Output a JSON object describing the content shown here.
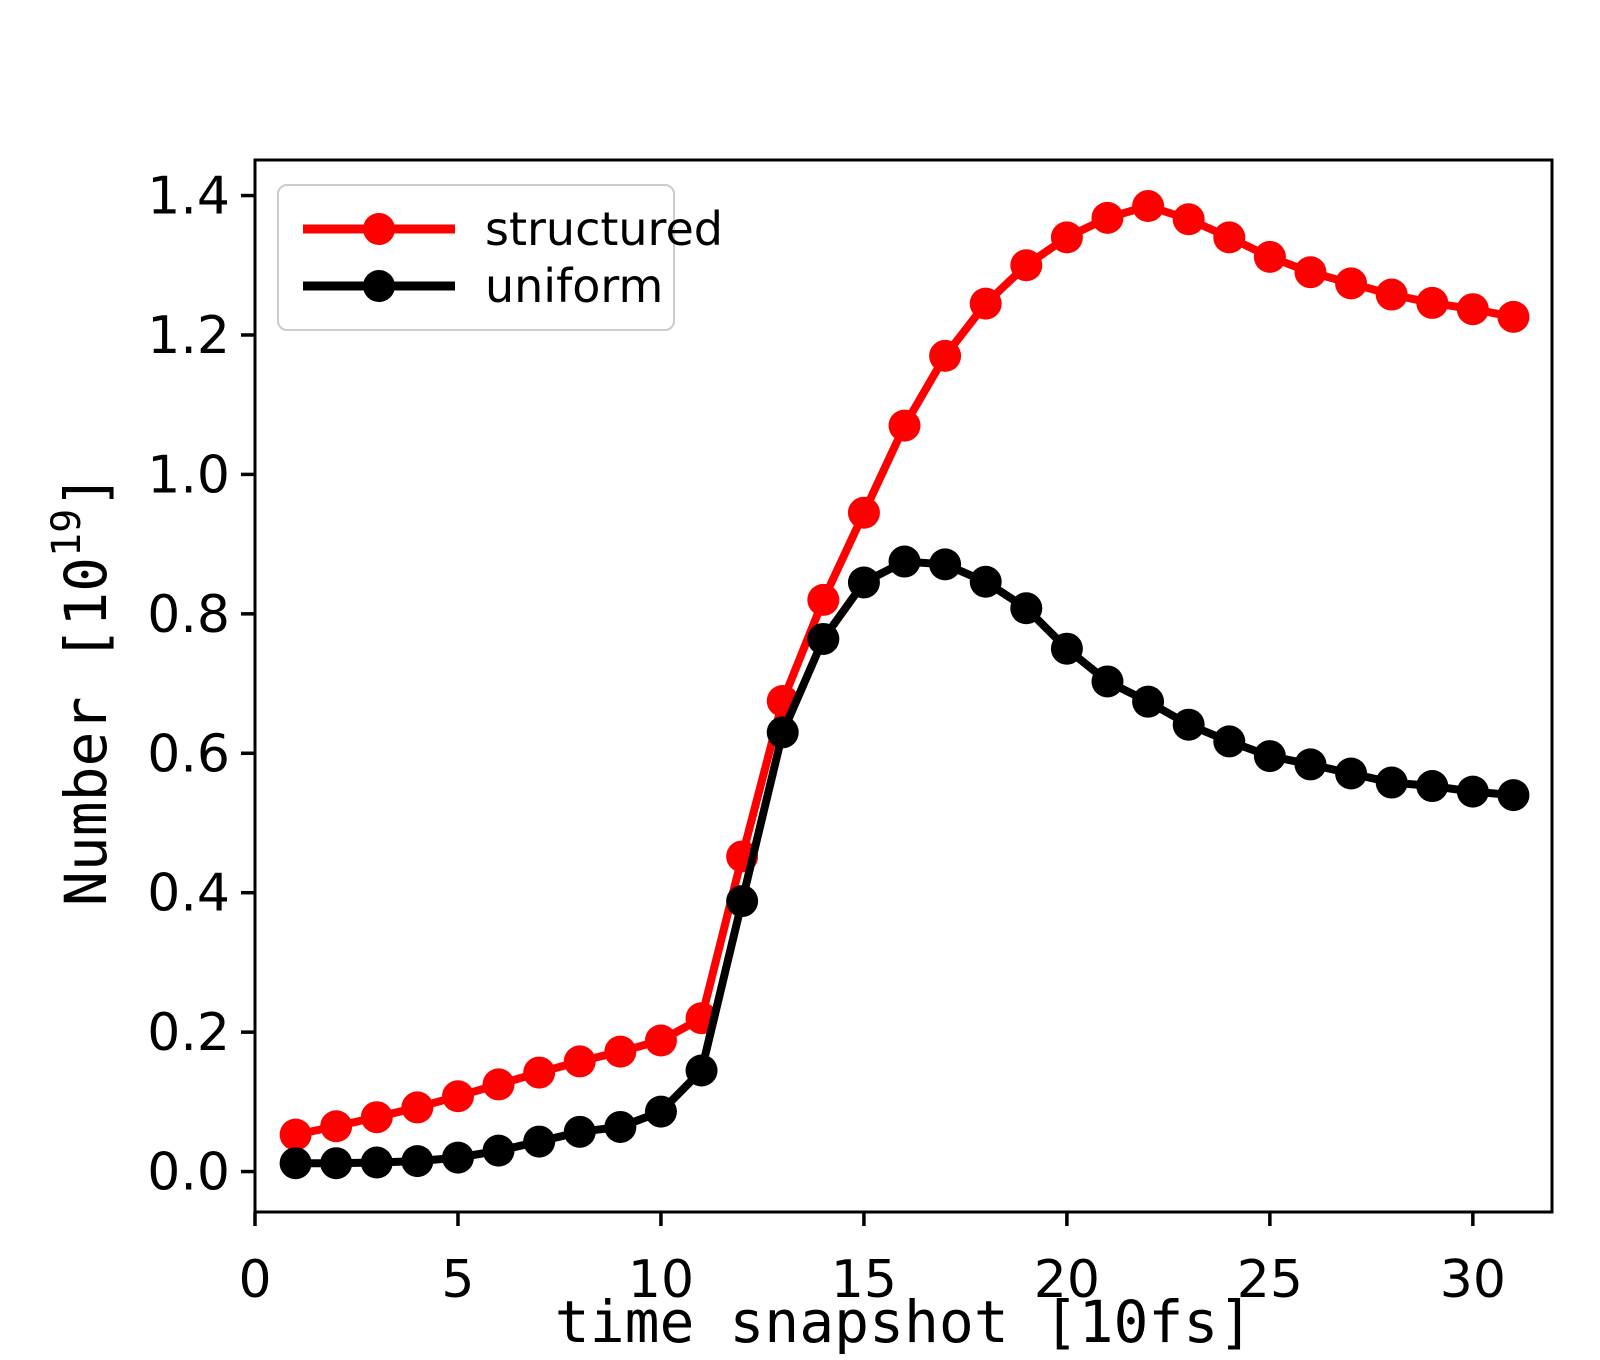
{
  "figure": {
    "background": "#ffffff"
  },
  "chart_data": {
    "type": "line",
    "title": "",
    "xlabel": "time snapshot [10fs]",
    "ylabel_prefix": "Number [10",
    "ylabel_superscript": "19",
    "ylabel_suffix": "]",
    "xlim": [
      0,
      31.95
    ],
    "ylim": [
      -0.058,
      1.451
    ],
    "grid": false,
    "legend_position": "upper left",
    "marker": "o",
    "xticks": {
      "values": [
        0,
        5,
        10,
        15,
        20,
        25,
        30
      ],
      "labels": [
        "0",
        "5",
        "10",
        "15",
        "20",
        "25",
        "30"
      ]
    },
    "yticks": {
      "values": [
        0.0,
        0.2,
        0.4,
        0.6,
        0.8,
        1.0,
        1.2,
        1.4
      ],
      "labels": [
        "0.0",
        "0.2",
        "0.4",
        "0.6",
        "0.8",
        "1.0",
        "1.2",
        "1.4"
      ]
    },
    "x": [
      1,
      2,
      3,
      4,
      5,
      6,
      7,
      8,
      9,
      10,
      11,
      12,
      13,
      14,
      15,
      16,
      17,
      18,
      19,
      20,
      21,
      22,
      23,
      24,
      25,
      26,
      27,
      28,
      29,
      30,
      31
    ],
    "series": [
      {
        "name": "structured",
        "color": "#ff0000",
        "values": [
          0.053,
          0.065,
          0.078,
          0.092,
          0.108,
          0.125,
          0.142,
          0.158,
          0.172,
          0.188,
          0.22,
          0.452,
          0.675,
          0.82,
          0.945,
          1.07,
          1.17,
          1.245,
          1.3,
          1.34,
          1.368,
          1.385,
          1.366,
          1.34,
          1.312,
          1.29,
          1.274,
          1.258,
          1.246,
          1.237,
          1.226
        ]
      },
      {
        "name": "uniform",
        "color": "#000000",
        "values": [
          0.012,
          0.012,
          0.013,
          0.015,
          0.02,
          0.03,
          0.043,
          0.057,
          0.064,
          0.086,
          0.145,
          0.388,
          0.63,
          0.764,
          0.845,
          0.875,
          0.871,
          0.846,
          0.808,
          0.75,
          0.703,
          0.674,
          0.641,
          0.617,
          0.596,
          0.584,
          0.571,
          0.558,
          0.553,
          0.545,
          0.54
        ]
      }
    ]
  }
}
